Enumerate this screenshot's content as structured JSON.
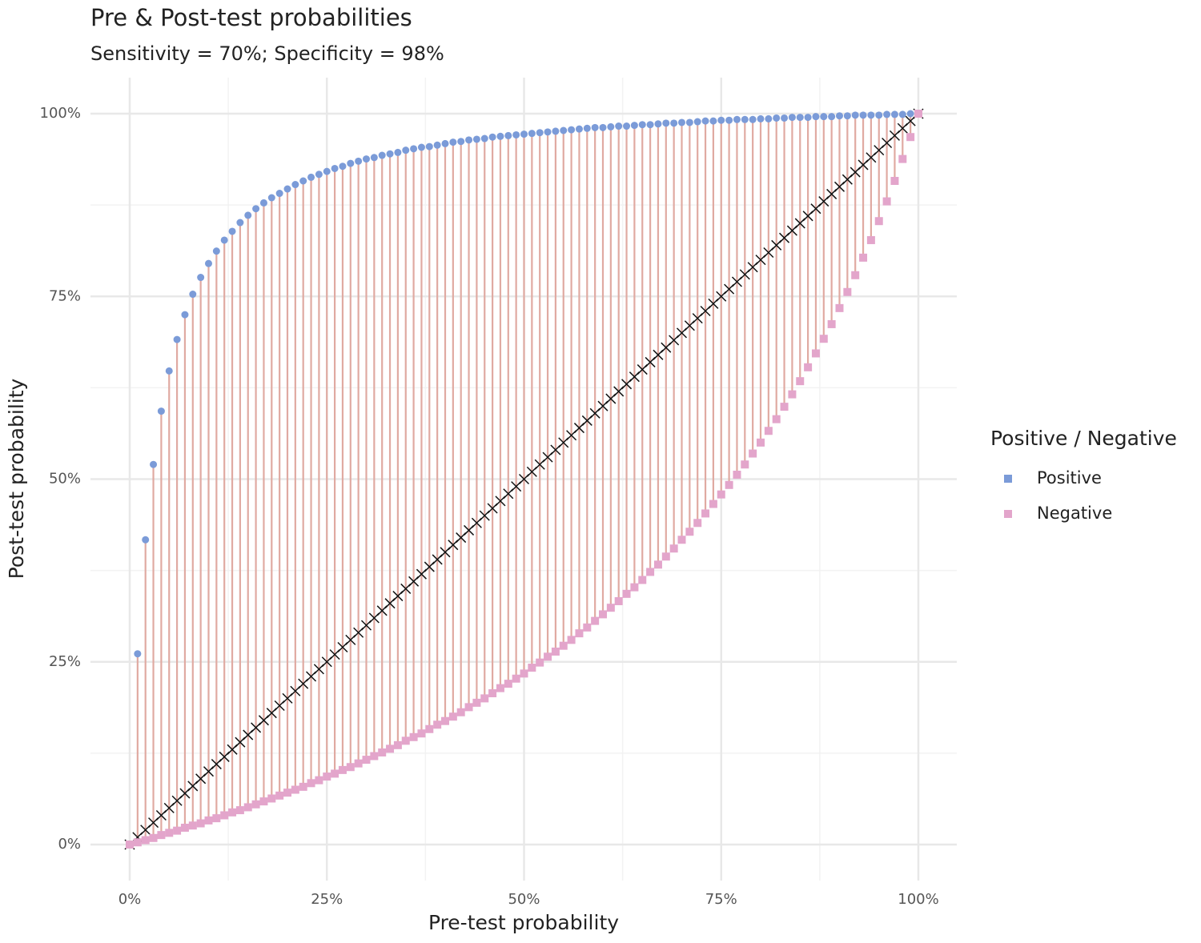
{
  "chart_data": {
    "type": "dropline",
    "title": "Pre & Post-test probabilities",
    "subtitle": "Sensitivity = 70%; Specificity = 98%",
    "x_label": "Pre-test probability",
    "y_label": "Post-test probability",
    "legend_title": "Positive / Negative",
    "legend_position": "right",
    "grid": true,
    "segment_color": "#e0aaa2",
    "reference_color": "#111111",
    "xlim": [
      0,
      100
    ],
    "ylim": [
      0,
      100
    ],
    "xticks": [
      {
        "value": 0,
        "label": "0%"
      },
      {
        "value": 25,
        "label": "25%"
      },
      {
        "value": 50,
        "label": "50%"
      },
      {
        "value": 75,
        "label": "75%"
      },
      {
        "value": 100,
        "label": "100%"
      }
    ],
    "yticks": [
      {
        "value": 0,
        "label": "0%"
      },
      {
        "value": 25,
        "label": "25%"
      },
      {
        "value": 50,
        "label": "50%"
      },
      {
        "value": 75,
        "label": "75%"
      },
      {
        "value": 100,
        "label": "100%"
      }
    ],
    "x": [
      0,
      1,
      2,
      3,
      4,
      5,
      6,
      7,
      8,
      9,
      10,
      11,
      12,
      13,
      14,
      15,
      16,
      17,
      18,
      19,
      20,
      21,
      22,
      23,
      24,
      25,
      26,
      27,
      28,
      29,
      30,
      31,
      32,
      33,
      34,
      35,
      36,
      37,
      38,
      39,
      40,
      41,
      42,
      43,
      44,
      45,
      46,
      47,
      48,
      49,
      50,
      51,
      52,
      53,
      54,
      55,
      56,
      57,
      58,
      59,
      60,
      61,
      62,
      63,
      64,
      65,
      66,
      67,
      68,
      69,
      70,
      71,
      72,
      73,
      74,
      75,
      76,
      77,
      78,
      79,
      80,
      81,
      82,
      83,
      84,
      85,
      86,
      87,
      88,
      89,
      90,
      91,
      92,
      93,
      94,
      95,
      96,
      97,
      98,
      99,
      100
    ],
    "series": [
      {
        "name": "Positive",
        "color": "#7b9bd8",
        "marker": "circle",
        "values": [
          0,
          26.1,
          41.7,
          52.0,
          59.3,
          64.8,
          69.1,
          72.5,
          75.3,
          77.6,
          79.5,
          81.2,
          82.7,
          83.9,
          85.1,
          86.1,
          87.0,
          87.8,
          88.5,
          89.1,
          89.7,
          90.3,
          90.8,
          91.3,
          91.7,
          92.1,
          92.5,
          92.8,
          93.2,
          93.5,
          93.8,
          94.0,
          94.3,
          94.5,
          94.7,
          95.0,
          95.2,
          95.4,
          95.5,
          95.7,
          95.9,
          96.1,
          96.2,
          96.4,
          96.5,
          96.6,
          96.8,
          96.9,
          97.0,
          97.1,
          97.2,
          97.3,
          97.4,
          97.5,
          97.6,
          97.7,
          97.8,
          97.9,
          98.0,
          98.1,
          98.1,
          98.2,
          98.3,
          98.3,
          98.4,
          98.5,
          98.5,
          98.6,
          98.7,
          98.7,
          98.8,
          98.8,
          98.9,
          99.0,
          99.0,
          99.1,
          99.1,
          99.2,
          99.2,
          99.2,
          99.3,
          99.3,
          99.4,
          99.4,
          99.5,
          99.5,
          99.5,
          99.6,
          99.6,
          99.6,
          99.7,
          99.7,
          99.8,
          99.8,
          99.8,
          99.8,
          99.9,
          99.9,
          99.9,
          100.0,
          100
        ]
      },
      {
        "name": "Negative",
        "color": "#e3a5cb",
        "marker": "square",
        "values": [
          0,
          0.3,
          0.6,
          0.9,
          1.3,
          1.6,
          1.9,
          2.3,
          2.6,
          2.9,
          3.3,
          3.6,
          4.0,
          4.4,
          4.7,
          5.1,
          5.5,
          5.9,
          6.3,
          6.7,
          7.1,
          7.5,
          7.9,
          8.4,
          8.8,
          9.3,
          9.7,
          10.2,
          10.6,
          11.1,
          11.6,
          12.1,
          12.6,
          13.1,
          13.6,
          14.2,
          14.7,
          15.2,
          15.8,
          16.4,
          16.9,
          17.5,
          18.1,
          18.8,
          19.4,
          20.0,
          20.7,
          21.4,
          22.0,
          22.7,
          23.4,
          24.2,
          24.9,
          25.7,
          26.4,
          27.2,
          28.0,
          28.9,
          29.7,
          30.6,
          31.5,
          32.4,
          33.3,
          34.3,
          35.2,
          36.2,
          37.3,
          38.3,
          39.4,
          40.5,
          41.7,
          42.8,
          44.0,
          45.3,
          46.6,
          47.9,
          49.2,
          50.6,
          52.0,
          53.5,
          55.0,
          56.6,
          58.2,
          59.9,
          61.6,
          63.4,
          65.3,
          67.2,
          69.2,
          71.2,
          73.4,
          75.6,
          77.9,
          80.3,
          82.7,
          85.3,
          88.0,
          90.8,
          93.8,
          96.8,
          100
        ]
      }
    ]
  }
}
